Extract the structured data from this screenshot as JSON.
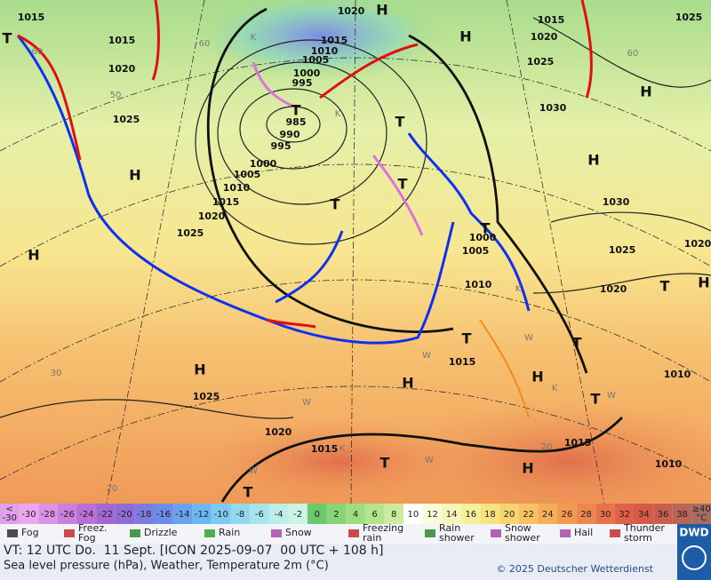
{
  "map": {
    "pressure_labels": [
      1015,
      1020,
      1015,
      1025,
      1015,
      1015,
      1010,
      1005,
      1020,
      1025,
      1020,
      1000,
      995,
      1030,
      1025,
      985,
      990,
      995,
      1000,
      1005,
      1010,
      1015,
      1020,
      1030,
      1025,
      1000,
      1005,
      1020,
      1025,
      1010,
      1020,
      1015,
      1010,
      1025,
      1020,
      1015,
      1015,
      1010
    ],
    "high_labels": [
      "H",
      "H",
      "H",
      "H",
      "H",
      "H",
      "H",
      "H",
      "H",
      "H",
      "H"
    ],
    "low_labels": [
      "T",
      "T",
      "T",
      "T",
      "T",
      "T",
      "T",
      "T",
      "T",
      "T",
      "T",
      "T"
    ],
    "latitude_labels": [
      60,
      60,
      50,
      30,
      20,
      20,
      60
    ],
    "weather_letters": [
      "K",
      "K",
      "K",
      "K",
      "W",
      "W",
      "W",
      "W",
      "W",
      "W",
      "K"
    ]
  },
  "scale": {
    "below": [
      "<",
      "-30"
    ],
    "values": [
      -30,
      -28,
      -26,
      -24,
      -22,
      -20,
      -18,
      -16,
      -14,
      -12,
      -10,
      -8,
      -6,
      -4,
      -2,
      0,
      2,
      4,
      6,
      8,
      10,
      12,
      14,
      16,
      18,
      20,
      22,
      24,
      26,
      28,
      30,
      32,
      34,
      36,
      38
    ],
    "colors": [
      "#eaa6ef",
      "#dc92e8",
      "#cc80de",
      "#b86fd6",
      "#a466d0",
      "#8d6cd6",
      "#7c7ce0",
      "#6c8cea",
      "#6aa2f0",
      "#6cb6f2",
      "#7ecaf2",
      "#92d9f0",
      "#a8e4ee",
      "#bbeeea",
      "#cbf4e4",
      "#6cc86c",
      "#86d476",
      "#9edc82",
      "#b6e48e",
      "#cdeb9e",
      "#ffffff",
      "#fbfbda",
      "#f7f5ba",
      "#f5ef9c",
      "#f6e47e",
      "#f8d46c",
      "#f8c260",
      "#f6ae58",
      "#f29a52",
      "#ee864e",
      "#e8724a",
      "#e06048",
      "#d65a48",
      "#c85e50",
      "#b86456"
    ],
    "above": [
      "≥40",
      "°C"
    ],
    "below_color": "#e0a0ec",
    "above_color": "#a86c62"
  },
  "legend": [
    [
      "Fog"
    ],
    [
      "Freez.",
      "Fog"
    ],
    [
      "Drizzle"
    ],
    [
      "Rain"
    ],
    [
      "Snow"
    ],
    [
      "Freezing",
      "rain"
    ],
    [
      "Rain",
      "shower"
    ],
    [
      "Snow",
      "shower"
    ],
    [
      "Hail"
    ],
    [
      "Thunder",
      "storm"
    ]
  ],
  "logo": "DWD",
  "footer": {
    "valid_time": "VT: 12 UTC Do.  11 Sept. [ICON 2025-09-07  00 UTC + 108 h]",
    "description": "Sea level pressure (hPa), Weather, Temperature 2m (°C)",
    "copyright": "© 2025 Deutscher Wetterdienst"
  }
}
